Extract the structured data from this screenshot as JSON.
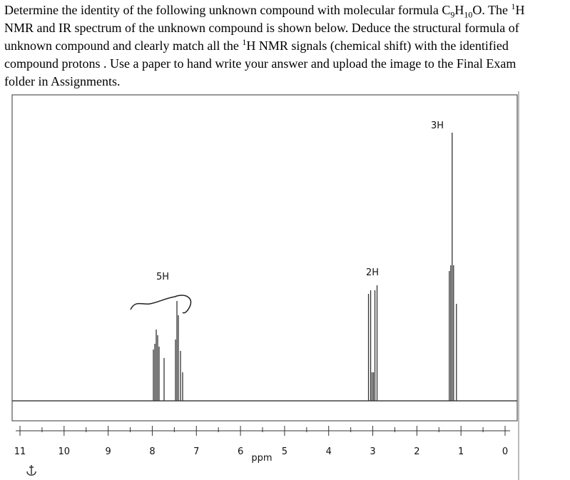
{
  "question": [
    {
      "text": "Determine the identity of the following unknown compound with molecular formula C"
    },
    {
      "text": "9",
      "style": "sub"
    },
    {
      "text": "H"
    },
    {
      "text": "10",
      "style": "sub"
    },
    {
      "text": "O. The "
    },
    {
      "text": "1",
      "style": "sup"
    },
    {
      "text": "H NMR and IR spectrum of the unknown compound is shown below. Deduce the structural formula of  unknown compound and clearly match all the "
    },
    {
      "text": "1",
      "style": "sup"
    },
    {
      "text": "H NMR signals (chemical shift) with the identified compound protons . Use a paper to hand write your answer and upload the image to the Final Exam folder in Assignments."
    }
  ],
  "spectrum": {
    "x_label": "ppm",
    "xlim": [
      11,
      0
    ],
    "xticks": [
      11,
      10,
      9,
      8,
      7,
      6,
      5,
      4,
      3,
      2,
      1,
      0
    ],
    "peaks": [
      {
        "label": "5H",
        "shift": 7.7
      },
      {
        "label": "2H",
        "shift": 3.0
      },
      {
        "label": "3H",
        "shift": 1.2
      }
    ]
  }
}
